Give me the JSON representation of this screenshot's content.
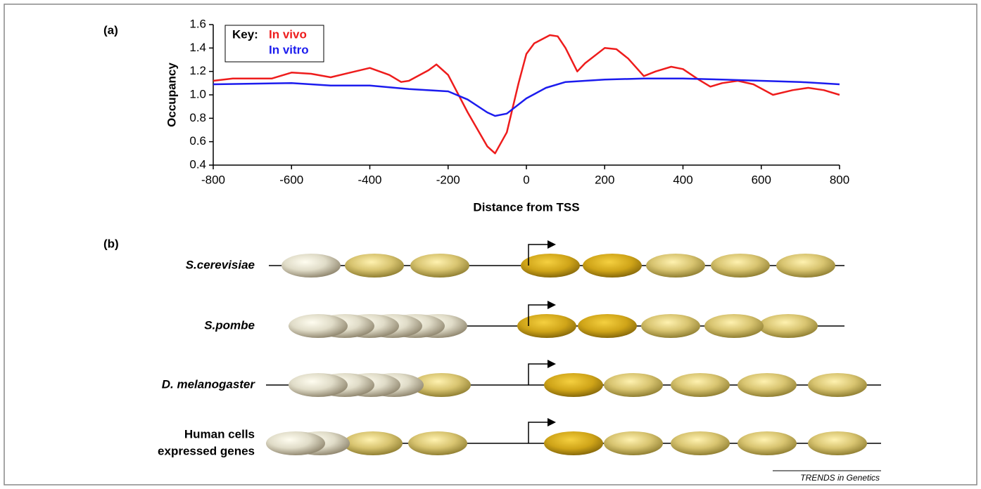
{
  "chart_data": {
    "type": "line",
    "x_label": "Distance from TSS",
    "y_label": "Occupancy",
    "legend_title": "Key:",
    "xlim": [
      -800,
      800
    ],
    "xticks": [
      -800,
      -600,
      -400,
      -200,
      0,
      200,
      400,
      600,
      800
    ],
    "ylim": [
      0.4,
      1.6
    ],
    "yticks": [
      0.4,
      0.6,
      0.8,
      {
        "value": 1,
        "label": "1.0"
      },
      1.2,
      1.4,
      1.6
    ],
    "series": [
      {
        "name": "In vivo",
        "color": "#ee1c1c",
        "x": [
          -800,
          -750,
          -700,
          -650,
          -600,
          -550,
          -500,
          -450,
          -400,
          -350,
          -320,
          -300,
          -250,
          -230,
          -200,
          -150,
          -100,
          -80,
          -50,
          -20,
          0,
          20,
          60,
          80,
          100,
          130,
          150,
          200,
          230,
          260,
          300,
          330,
          370,
          400,
          440,
          470,
          500,
          540,
          580,
          630,
          680,
          720,
          760,
          800
        ],
        "values": [
          1.12,
          1.14,
          1.14,
          1.14,
          1.19,
          1.18,
          1.15,
          1.19,
          1.23,
          1.17,
          1.11,
          1.12,
          1.21,
          1.26,
          1.17,
          0.85,
          0.56,
          0.5,
          0.68,
          1.1,
          1.35,
          1.44,
          1.51,
          1.5,
          1.4,
          1.2,
          1.27,
          1.4,
          1.39,
          1.31,
          1.16,
          1.2,
          1.24,
          1.22,
          1.13,
          1.07,
          1.1,
          1.12,
          1.09,
          1.0,
          1.04,
          1.06,
          1.04,
          1.0
        ]
      },
      {
        "name": "In vitro",
        "color": "#1c1cee",
        "x": [
          -800,
          -600,
          -500,
          -400,
          -300,
          -200,
          -150,
          -100,
          -80,
          -50,
          0,
          50,
          100,
          200,
          300,
          400,
          500,
          600,
          700,
          800
        ],
        "values": [
          1.09,
          1.1,
          1.08,
          1.08,
          1.05,
          1.03,
          0.96,
          0.85,
          0.82,
          0.84,
          0.97,
          1.06,
          1.11,
          1.13,
          1.14,
          1.14,
          1.13,
          1.12,
          1.11,
          1.09
        ]
      }
    ]
  },
  "panel_labels": [
    "(a)",
    "(b)"
  ],
  "diagram": {
    "rows": [
      {
        "label": [
          "S.cerevisiae"
        ]
      },
      {
        "label": [
          "S.pombe"
        ]
      },
      {
        "label": [
          "D. melanogaster"
        ]
      },
      {
        "label": [
          "Human cells",
          "expressed genes"
        ]
      }
    ]
  },
  "credit": "TRENDS in Genetics"
}
